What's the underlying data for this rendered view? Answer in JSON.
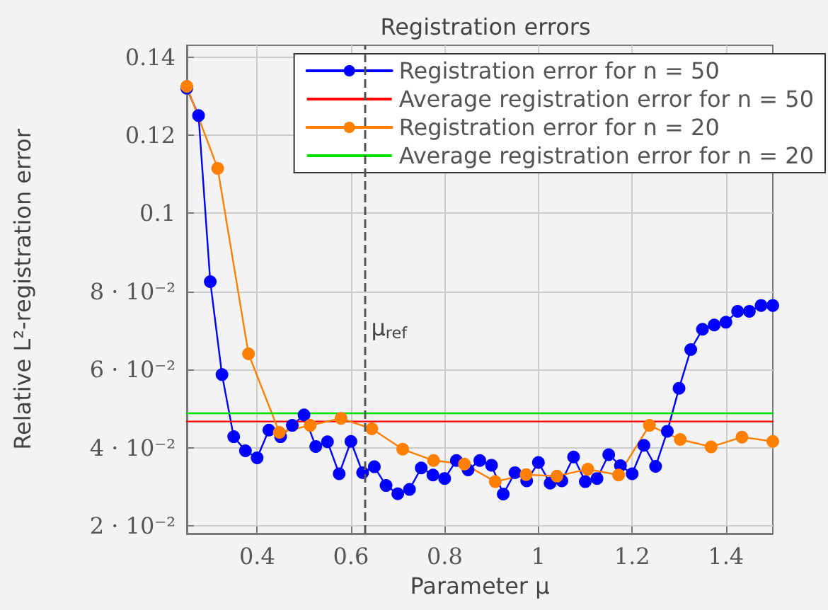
{
  "chart_data": {
    "type": "line",
    "title": "Registration errors",
    "xlabel": "Parameter μ",
    "ylabel": "Relative L²-registration error",
    "xlim": [
      0.25,
      1.5
    ],
    "xticks": [
      0.4,
      0.6,
      0.8,
      1,
      1.2,
      1.4
    ],
    "ylim": [
      0.018,
      0.143
    ],
    "yticks": [
      {
        "value": 0.02,
        "label": "2 · 10⁻²"
      },
      {
        "value": 0.04,
        "label": "4 · 10⁻²"
      },
      {
        "value": 0.06,
        "label": "6 · 10⁻²"
      },
      {
        "value": 0.08,
        "label": "8 · 10⁻²"
      },
      {
        "value": 0.1,
        "label": "0.1"
      },
      {
        "value": 0.12,
        "label": "0.12"
      },
      {
        "value": 0.14,
        "label": "0.14"
      }
    ],
    "grid": true,
    "legend": "top right",
    "series": [
      {
        "name": "Registration error for n = 50",
        "color": "#0000ff",
        "marker": "circle",
        "x": [
          0.25,
          0.275,
          0.3,
          0.325,
          0.35,
          0.375,
          0.4,
          0.425,
          0.45,
          0.475,
          0.5,
          0.525,
          0.55,
          0.575,
          0.6,
          0.625,
          0.65,
          0.675,
          0.7,
          0.725,
          0.75,
          0.775,
          0.8,
          0.825,
          0.85,
          0.875,
          0.9,
          0.925,
          0.95,
          0.975,
          1,
          1.025,
          1.05,
          1.075,
          1.1,
          1.125,
          1.15,
          1.175,
          1.2,
          1.225,
          1.25,
          1.275,
          1.3,
          1.325,
          1.35,
          1.375,
          1.4,
          1.425,
          1.45,
          1.475,
          1.5
        ],
        "values": [
          0.132,
          0.125,
          0.0825,
          0.0587,
          0.0428,
          0.0392,
          0.0374,
          0.0445,
          0.0428,
          0.0457,
          0.0484,
          0.0403,
          0.0415,
          0.0333,
          0.0416,
          0.0336,
          0.0351,
          0.0303,
          0.0282,
          0.0293,
          0.0348,
          0.033,
          0.0321,
          0.0367,
          0.0343,
          0.0367,
          0.0355,
          0.0281,
          0.0336,
          0.0315,
          0.0362,
          0.0309,
          0.0315,
          0.0376,
          0.0313,
          0.0321,
          0.0382,
          0.0354,
          0.0333,
          0.0406,
          0.0352,
          0.0442,
          0.0552,
          0.0651,
          0.0703,
          0.0714,
          0.0721,
          0.0749,
          0.0749,
          0.0764,
          0.0764
        ]
      },
      {
        "name": "Average registration error for n = 50",
        "color": "#ff0000",
        "marker": "none",
        "x": [
          0.25,
          1.5
        ],
        "values": [
          0.0467,
          0.0467
        ]
      },
      {
        "name": "Registration error for n = 20",
        "color": "#ff8000",
        "marker": "circle",
        "x": [
          0.25,
          0.3158,
          0.3816,
          0.4474,
          0.5132,
          0.5789,
          0.6447,
          0.7105,
          0.7763,
          0.8421,
          0.9079,
          0.9737,
          1.0395,
          1.1053,
          1.1711,
          1.2368,
          1.3026,
          1.3684,
          1.4342,
          1.5
        ],
        "values": [
          0.1325,
          0.1115,
          0.064,
          0.0439,
          0.0457,
          0.0475,
          0.0448,
          0.0396,
          0.0367,
          0.0358,
          0.0313,
          0.0331,
          0.0327,
          0.0345,
          0.033,
          0.0457,
          0.0421,
          0.0402,
          0.0427,
          0.0416
        ]
      },
      {
        "name": "Average registration error for n = 20",
        "color": "#00e000",
        "marker": "none",
        "x": [
          0.25,
          1.5
        ],
        "values": [
          0.0488,
          0.0488
        ]
      }
    ],
    "ref_lines": [
      {
        "axis": "x",
        "value": 0.625,
        "label": "μ$_{ref}$",
        "color": "#555555",
        "line_style": "dashed"
      }
    ]
  }
}
